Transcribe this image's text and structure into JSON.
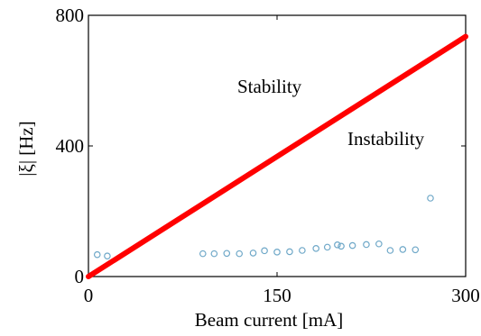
{
  "chart_data": {
    "type": "scatter",
    "xlabel": "Beam current [mA]",
    "ylabel": "|ξ| [Hz]",
    "xlim": [
      0,
      300
    ],
    "ylim": [
      0,
      800
    ],
    "x_ticks": [
      "0",
      "150",
      "300"
    ],
    "x_tick_values": [
      0,
      150,
      300
    ],
    "y_ticks": [
      "0",
      "400",
      "800"
    ],
    "y_tick_values": [
      0,
      400,
      800
    ],
    "grid": false,
    "line_color": "#ff0000",
    "marker_color": "#6fa8c8",
    "threshold_line": {
      "x": [
        0,
        300
      ],
      "y": [
        0,
        735
      ]
    },
    "points": [
      {
        "x": 7,
        "y": 67
      },
      {
        "x": 15,
        "y": 63
      },
      {
        "x": 91,
        "y": 70
      },
      {
        "x": 100,
        "y": 70
      },
      {
        "x": 110,
        "y": 71
      },
      {
        "x": 120,
        "y": 70
      },
      {
        "x": 131,
        "y": 72
      },
      {
        "x": 140,
        "y": 79
      },
      {
        "x": 150,
        "y": 75
      },
      {
        "x": 160,
        "y": 76
      },
      {
        "x": 170,
        "y": 80
      },
      {
        "x": 181,
        "y": 86
      },
      {
        "x": 190,
        "y": 90
      },
      {
        "x": 198,
        "y": 97
      },
      {
        "x": 201,
        "y": 93
      },
      {
        "x": 210,
        "y": 95
      },
      {
        "x": 221,
        "y": 98
      },
      {
        "x": 231,
        "y": 100
      },
      {
        "x": 240,
        "y": 80
      },
      {
        "x": 250,
        "y": 83
      },
      {
        "x": 260,
        "y": 82
      },
      {
        "x": 272,
        "y": 240
      }
    ],
    "annotations": {
      "stability": "Stability",
      "instability": "Instability"
    }
  }
}
